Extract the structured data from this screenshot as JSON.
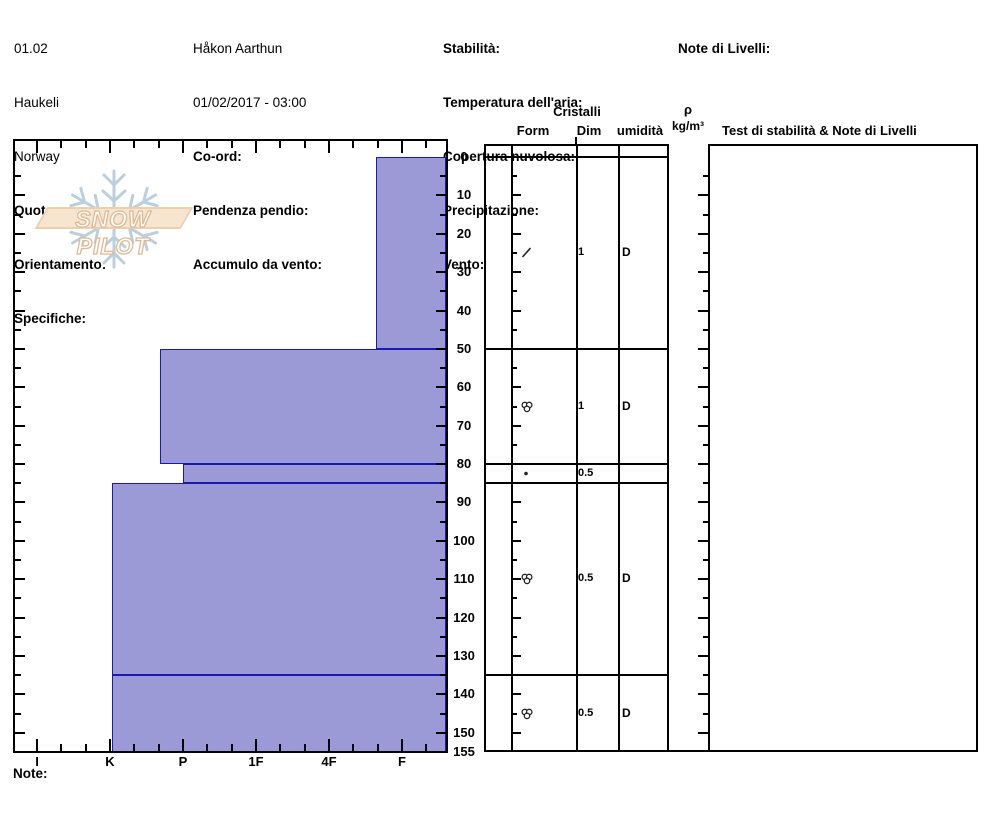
{
  "header": {
    "col1": [
      {
        "text": "01.02",
        "bold": false
      },
      {
        "text": "Haukeli",
        "bold": false
      },
      {
        "text": "Norway",
        "bold": false
      },
      {
        "text": "Quota:",
        "bold": true
      },
      {
        "text": "Orientamento:",
        "bold": true
      },
      {
        "text": "Specifiche:",
        "bold": true
      }
    ],
    "col2": [
      {
        "text": "Håkon Aarthun",
        "bold": false
      },
      {
        "text": "01/02/2017 - 03:00",
        "bold": false
      },
      {
        "text": "Co-ord:",
        "bold": true
      },
      {
        "text": "Pendenza pendio:",
        "bold": true
      },
      {
        "text": "Accumulo da vento:",
        "bold": true
      }
    ],
    "col3": [
      {
        "text": "Stabilità:",
        "bold": true
      },
      {
        "text": "Temperatura dell'aria:",
        "bold": true
      },
      {
        "text": "Copertura nuvolosa:",
        "bold": true
      },
      {
        "text": "Precipitazione:",
        "bold": true
      },
      {
        "text": "Vento:",
        "bold": true
      }
    ],
    "col4": [
      {
        "text": "Note di Livelli:",
        "bold": true
      }
    ]
  },
  "watermark": {
    "text": "SNOW PILOT",
    "banner_color": "#f8e5d0",
    "snowflake_color": "#bccfdc"
  },
  "table": {
    "headers": {
      "cristalli": "Cristalli",
      "form": "Form",
      "dim": "Dim",
      "humidity": "umidità",
      "rho": "ρ",
      "rho_unit": "kg/m³",
      "test": "Test di stabilità & Note di Livelli"
    }
  },
  "note_label": "Note:",
  "chart_data": {
    "type": "bar",
    "description": "Snow profile: layer hand-hardness vs depth (cm), hardness increases to the left",
    "hardness_categories": [
      "I",
      "K",
      "P",
      "1F",
      "4F",
      "F"
    ],
    "depth_ticks": [
      0,
      10,
      20,
      30,
      40,
      50,
      60,
      70,
      80,
      90,
      100,
      110,
      120,
      130,
      140,
      150,
      155
    ],
    "depth_max_cm": 155,
    "bar_color": "#9b9ad7",
    "bar_border": "#1a1aae",
    "layers": [
      {
        "top_cm": 0,
        "bottom_cm": 50,
        "hardness_index": 4.64,
        "grain_symbol": "slash",
        "grain_form": "DF",
        "dim_mm": "1",
        "moisture": "D"
      },
      {
        "top_cm": 50,
        "bottom_cm": 80,
        "hardness_index": 1.68,
        "grain_symbol": "cluster",
        "grain_form": "MF",
        "dim_mm": "1",
        "moisture": "D"
      },
      {
        "top_cm": 80,
        "bottom_cm": 85,
        "hardness_index": 2.0,
        "grain_symbol": "dot",
        "grain_form": "RG",
        "dim_mm": "0.5",
        "moisture": ""
      },
      {
        "top_cm": 85,
        "bottom_cm": 135,
        "hardness_index": 1.03,
        "grain_symbol": "cluster",
        "grain_form": "MF",
        "dim_mm": "0.5",
        "moisture": "D"
      },
      {
        "top_cm": 135,
        "bottom_cm": 155,
        "hardness_index": 1.03,
        "grain_symbol": "cluster",
        "grain_form": "MF",
        "dim_mm": "0.5",
        "moisture": "D"
      }
    ]
  }
}
